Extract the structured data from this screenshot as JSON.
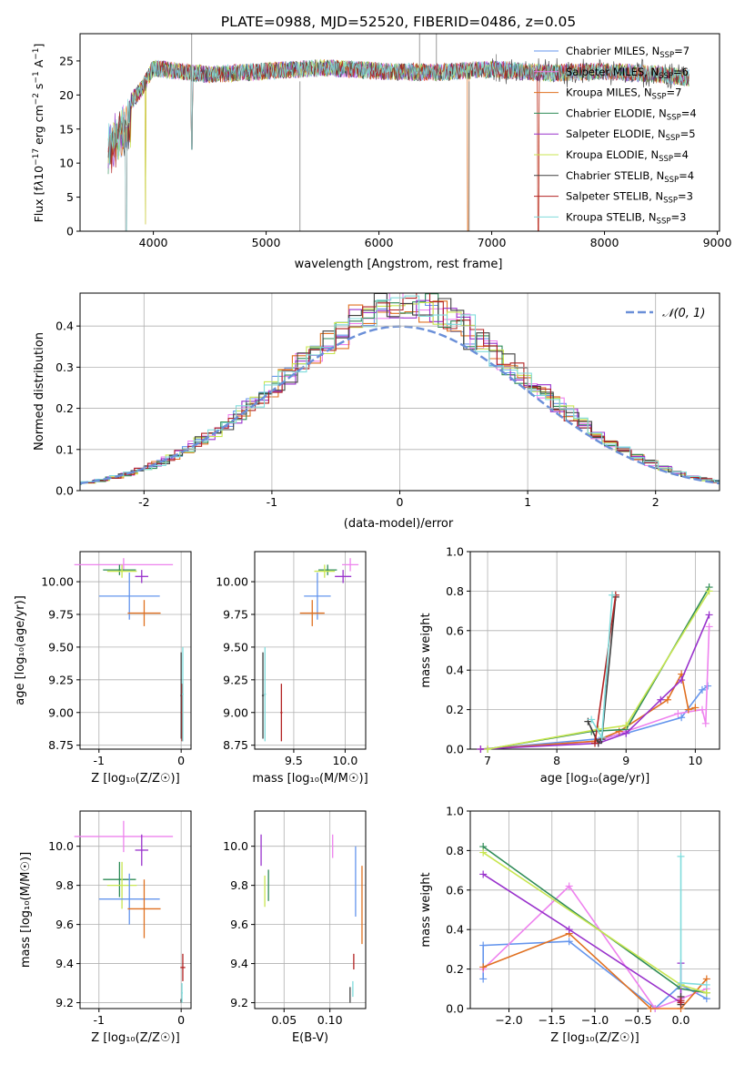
{
  "chart_data": [
    {
      "id": "spectrum",
      "type": "line",
      "title": "PLATE=0988, MJD=52520, FIBERID=0486, z=0.05",
      "xlabel": "wavelength [Angstrom, rest frame]",
      "ylabel": "Flux [f_λ 10^{-17} erg cm^{-2} s^{-1} A^{-1}]",
      "xlim": [
        3350,
        9020
      ],
      "ylim": [
        0,
        29
      ],
      "xticks": [
        4000,
        5000,
        6000,
        7000,
        8000,
        9000
      ],
      "yticks": [
        0,
        5,
        10,
        15,
        20,
        25
      ],
      "grid": false,
      "legend_position": "top-right",
      "data_x_range": [
        3600,
        8750
      ],
      "legend": [
        {
          "name": "Chabrier MILES, N",
          "sub": "SSP",
          "tail": "=7",
          "color": "#6495ed"
        },
        {
          "name": "Salpeter MILES, N",
          "sub": "SSP",
          "tail": "=6",
          "color": "#ee82ee"
        },
        {
          "name": "Kroupa MILES, N",
          "sub": "SSP",
          "tail": "=7",
          "color": "#e07020"
        },
        {
          "name": "Chabrier ELODIE, N",
          "sub": "SSP",
          "tail": "=4",
          "color": "#2e8b57"
        },
        {
          "name": "Salpeter ELODIE, N",
          "sub": "SSP",
          "tail": "=5",
          "color": "#9932cc"
        },
        {
          "name": "Kroupa ELODIE, N",
          "sub": "SSP",
          "tail": "=4",
          "color": "#c8e650"
        },
        {
          "name": "Chabrier STELIB, N",
          "sub": "SSP",
          "tail": "=4",
          "color": "#404040"
        },
        {
          "name": "Salpeter STELIB, N",
          "sub": "SSP",
          "tail": "=3",
          "color": "#b22222"
        },
        {
          "name": "Kroupa STELIB, N",
          "sub": "SSP",
          "tail": "=3",
          "color": "#7fdcdc"
        }
      ],
      "continuum": {
        "x": [
          3600,
          3700,
          3800,
          3900,
          4000,
          4200,
          4500,
          5000,
          5500,
          6000,
          6500,
          7000,
          7500,
          8000,
          8500,
          8750
        ],
        "y": [
          15,
          17,
          19,
          21,
          24,
          23.5,
          23,
          23.5,
          24,
          23.5,
          23.3,
          23.8,
          23.2,
          23.5,
          23,
          22.5
        ]
      }
    },
    {
      "id": "residuals",
      "type": "line",
      "xlabel": "(data-model)/error",
      "ylabel": "Normed distribution",
      "xlim": [
        -2.5,
        2.5
      ],
      "ylim": [
        0,
        0.48
      ],
      "xticks": [
        -2,
        -1,
        0,
        1,
        2
      ],
      "yticks": [
        0.0,
        0.1,
        0.2,
        0.3,
        0.4
      ],
      "grid": true,
      "legend_position": "top-right",
      "legend": [
        {
          "name": "𝒩(0, 1)",
          "style": "dashed",
          "color": "#6a8fd8"
        }
      ],
      "gaussian": {
        "mean": 0,
        "sigma": 1
      }
    },
    {
      "id": "age_vs_Z",
      "type": "scatter",
      "xlabel": "Z [log₁₀(Z/Z☉)]",
      "ylabel": "age  [log₁₀(age/yr)]",
      "xlim": [
        -1.23,
        0.12
      ],
      "ylim": [
        8.72,
        10.23
      ],
      "xticks": [
        -1,
        0
      ],
      "yticks": [
        8.75,
        9.0,
        9.25,
        9.5,
        9.75,
        10.0
      ],
      "grid": true,
      "points": [
        {
          "color": "#ee82ee",
          "x": -0.7,
          "y": 10.13,
          "xerr": 0.6,
          "yerr": 0.05
        },
        {
          "color": "#2e8b57",
          "x": -0.75,
          "y": 10.09,
          "xerr": 0.2,
          "yerr": 0.04
        },
        {
          "color": "#c8e650",
          "x": -0.72,
          "y": 10.08,
          "xerr": 0.18,
          "yerr": 0.05
        },
        {
          "color": "#9932cc",
          "x": -0.48,
          "y": 10.04,
          "xerr": 0.08,
          "yerr": 0.05
        },
        {
          "color": "#6495ed",
          "x": -0.63,
          "y": 9.89,
          "xerr": 0.37,
          "yerr": 0.18
        },
        {
          "color": "#e07020",
          "x": -0.45,
          "y": 9.76,
          "xerr": 0.2,
          "yerr": 0.1
        },
        {
          "color": "#404040",
          "x": 0.0,
          "y": 9.13,
          "xerr": 0.01,
          "yerr": 0.33
        },
        {
          "color": "#b22222",
          "x": 0.01,
          "y": 9.0,
          "xerr": 0.01,
          "yerr": 0.22
        },
        {
          "color": "#7fdcdc",
          "x": 0.02,
          "y": 9.14,
          "xerr": 0.01,
          "yerr": 0.36
        }
      ]
    },
    {
      "id": "age_vs_mass",
      "type": "scatter",
      "xlabel": "mass [log₁₀(M/M☉)]",
      "xlim": [
        9.12,
        10.2
      ],
      "ylim": [
        8.72,
        10.23
      ],
      "xticks": [
        9.5,
        10.0
      ],
      "yticks": [
        8.75,
        9.0,
        9.25,
        9.5,
        9.75,
        10.0
      ],
      "grid": true,
      "points": [
        {
          "color": "#ee82ee",
          "x": 10.05,
          "y": 10.13,
          "xerr": 0.08,
          "yerr": 0.05
        },
        {
          "color": "#2e8b57",
          "x": 9.83,
          "y": 10.09,
          "xerr": 0.09,
          "yerr": 0.04
        },
        {
          "color": "#c8e650",
          "x": 9.8,
          "y": 10.08,
          "xerr": 0.1,
          "yerr": 0.05
        },
        {
          "color": "#9932cc",
          "x": 9.98,
          "y": 10.04,
          "xerr": 0.08,
          "yerr": 0.05
        },
        {
          "color": "#6495ed",
          "x": 9.73,
          "y": 9.89,
          "xerr": 0.13,
          "yerr": 0.18
        },
        {
          "color": "#e07020",
          "x": 9.68,
          "y": 9.76,
          "xerr": 0.12,
          "yerr": 0.1
        },
        {
          "color": "#404040",
          "x": 9.2,
          "y": 9.13,
          "xerr": 0.01,
          "yerr": 0.33
        },
        {
          "color": "#b22222",
          "x": 9.38,
          "y": 9.0,
          "xerr": 0.01,
          "yerr": 0.22
        },
        {
          "color": "#7fdcdc",
          "x": 9.22,
          "y": 9.14,
          "xerr": 0.01,
          "yerr": 0.36
        }
      ]
    },
    {
      "id": "weight_vs_age",
      "type": "line",
      "xlabel": "age  [log₁₀(age/yr)]",
      "ylabel": "mass weight",
      "xlim": [
        6.75,
        10.35
      ],
      "ylim": [
        0,
        1
      ],
      "xticks": [
        7,
        8,
        9,
        10
      ],
      "yticks": [
        0.0,
        0.2,
        0.4,
        0.6,
        0.8,
        1.0
      ],
      "grid": true,
      "series": [
        {
          "color": "#6495ed",
          "x": [
            6.9,
            8.55,
            9.0,
            9.8,
            10.1,
            10.18
          ],
          "y": [
            0.0,
            0.05,
            0.08,
            0.16,
            0.3,
            0.32
          ]
        },
        {
          "color": "#ee82ee",
          "x": [
            6.9,
            8.6,
            9.0,
            9.75,
            10.1,
            10.15,
            10.2
          ],
          "y": [
            0.0,
            0.04,
            0.09,
            0.18,
            0.2,
            0.13,
            0.62
          ]
        },
        {
          "color": "#e07020",
          "x": [
            6.9,
            8.55,
            8.9,
            9.6,
            9.8,
            9.9,
            10.0
          ],
          "y": [
            0.0,
            0.04,
            0.09,
            0.25,
            0.38,
            0.2,
            0.21
          ]
        },
        {
          "color": "#2e8b57",
          "x": [
            7.0,
            8.5,
            9.0,
            10.2
          ],
          "y": [
            0.0,
            0.09,
            0.1,
            0.82
          ]
        },
        {
          "color": "#9932cc",
          "x": [
            6.9,
            8.6,
            9.0,
            9.5,
            9.8,
            10.2
          ],
          "y": [
            0.0,
            0.03,
            0.08,
            0.25,
            0.35,
            0.68
          ]
        },
        {
          "color": "#c8e650",
          "x": [
            7.0,
            8.6,
            9.0,
            10.2
          ],
          "y": [
            0.0,
            0.1,
            0.12,
            0.8
          ]
        },
        {
          "color": "#404040",
          "x": [
            8.45,
            8.6,
            8.65,
            8.85
          ],
          "y": [
            0.14,
            0.03,
            0.05,
            0.77
          ]
        },
        {
          "color": "#b22222",
          "x": [
            8.55,
            8.85
          ],
          "y": [
            0.03,
            0.78
          ]
        },
        {
          "color": "#7fdcdc",
          "x": [
            8.5,
            8.65,
            8.8
          ],
          "y": [
            0.15,
            0.06,
            0.78
          ]
        }
      ]
    },
    {
      "id": "mass_vs_Z",
      "type": "scatter",
      "xlabel": "Z [log₁₀(Z/Z☉)]",
      "ylabel": "mass [log₁₀(M/M☉)]",
      "xlim": [
        -1.23,
        0.12
      ],
      "ylim": [
        9.17,
        10.18
      ],
      "xticks": [
        -1,
        0
      ],
      "yticks": [
        9.2,
        9.4,
        9.6,
        9.8,
        10.0
      ],
      "grid": true,
      "points": [
        {
          "color": "#ee82ee",
          "x": -0.7,
          "y": 10.05,
          "xerr": 0.6,
          "yerr": 0.08
        },
        {
          "color": "#2e8b57",
          "x": -0.75,
          "y": 9.83,
          "xerr": 0.2,
          "yerr": 0.09
        },
        {
          "color": "#c8e650",
          "x": -0.72,
          "y": 9.8,
          "xerr": 0.18,
          "yerr": 0.12
        },
        {
          "color": "#9932cc",
          "x": -0.48,
          "y": 9.98,
          "xerr": 0.08,
          "yerr": 0.08
        },
        {
          "color": "#6495ed",
          "x": -0.63,
          "y": 9.73,
          "xerr": 0.37,
          "yerr": 0.13
        },
        {
          "color": "#e07020",
          "x": -0.45,
          "y": 9.68,
          "xerr": 0.2,
          "yerr": 0.15
        },
        {
          "color": "#404040",
          "x": 0.0,
          "y": 9.21,
          "xerr": 0.01,
          "yerr": 0.01
        },
        {
          "color": "#b22222",
          "x": 0.02,
          "y": 9.38,
          "xerr": 0.03,
          "yerr": 0.07
        },
        {
          "color": "#7fdcdc",
          "x": 0.01,
          "y": 9.25,
          "xerr": 0.01,
          "yerr": 0.05
        }
      ]
    },
    {
      "id": "mass_vs_EBV",
      "type": "scatter",
      "xlabel": "E(B-V)",
      "xlim": [
        0.018,
        0.139
      ],
      "ylim": [
        9.17,
        10.18
      ],
      "xticks": [
        0.05,
        0.1
      ],
      "yticks": [
        9.2,
        9.4,
        9.6,
        9.8,
        10.0
      ],
      "grid": true,
      "points": [
        {
          "color": "#ee82ee",
          "x": 0.103,
          "y": 10.0,
          "xerr": 0.0,
          "yerr": 0.06
        },
        {
          "color": "#9932cc",
          "x": 0.025,
          "y": 9.98,
          "xerr": 0.0,
          "yerr": 0.08
        },
        {
          "color": "#6495ed",
          "x": 0.128,
          "y": 9.82,
          "xerr": 0.0,
          "yerr": 0.18
        },
        {
          "color": "#e07020",
          "x": 0.135,
          "y": 9.7,
          "xerr": 0.0,
          "yerr": 0.2
        },
        {
          "color": "#2e8b57",
          "x": 0.033,
          "y": 9.8,
          "xerr": 0.0,
          "yerr": 0.08
        },
        {
          "color": "#c8e650",
          "x": 0.029,
          "y": 9.77,
          "xerr": 0.0,
          "yerr": 0.08
        },
        {
          "color": "#b22222",
          "x": 0.126,
          "y": 9.41,
          "xerr": 0.0,
          "yerr": 0.04
        },
        {
          "color": "#404040",
          "x": 0.122,
          "y": 9.24,
          "xerr": 0.0,
          "yerr": 0.04
        },
        {
          "color": "#7fdcdc",
          "x": 0.125,
          "y": 9.27,
          "xerr": 0.0,
          "yerr": 0.04
        }
      ]
    },
    {
      "id": "weight_vs_Z",
      "type": "line",
      "xlabel": "Z [log₁₀(Z/Z☉)]",
      "ylabel": "mass weight",
      "xlim": [
        -2.45,
        0.45
      ],
      "ylim": [
        0,
        1
      ],
      "xticks": [
        -2.0,
        -1.5,
        -1.0,
        -0.5,
        0.0
      ],
      "yticks": [
        0.0,
        0.2,
        0.4,
        0.6,
        0.8,
        1.0
      ],
      "grid": true,
      "series": [
        {
          "color": "#6495ed",
          "x": [
            -2.3,
            -2.3,
            -1.3,
            -0.3,
            0.0,
            0.3
          ],
          "y": [
            0.15,
            0.32,
            0.34,
            0.0,
            0.12,
            0.05
          ]
        },
        {
          "color": "#ee82ee",
          "x": [
            -2.3,
            -1.3,
            -0.3,
            0.0,
            0.3
          ],
          "y": [
            0.2,
            0.62,
            0.0,
            0.05,
            0.1
          ]
        },
        {
          "color": "#e07020",
          "x": [
            -2.3,
            -1.3,
            -0.35,
            0.0,
            0.3
          ],
          "y": [
            0.21,
            0.38,
            0.0,
            0.0,
            0.15
          ]
        },
        {
          "color": "#2e8b57",
          "x": [
            -2.3,
            0.0,
            0.3
          ],
          "y": [
            0.82,
            0.1,
            0.08
          ]
        },
        {
          "color": "#9932cc",
          "x": [
            -2.3,
            -1.3,
            0.0,
            0.0
          ],
          "y": [
            0.68,
            0.4,
            0.03,
            0.23
          ]
        },
        {
          "color": "#c8e650",
          "x": [
            -2.3,
            0.0,
            0.3
          ],
          "y": [
            0.79,
            0.12,
            0.08
          ]
        },
        {
          "color": "#404040",
          "x": [
            0.0,
            0.0
          ],
          "y": [
            0.02,
            0.06
          ]
        },
        {
          "color": "#b22222",
          "x": [
            0.0,
            0.0
          ],
          "y": [
            0.03,
            0.04
          ]
        },
        {
          "color": "#7fdcdc",
          "x": [
            0.0,
            0.0,
            0.3
          ],
          "y": [
            0.77,
            0.13,
            0.12
          ]
        }
      ]
    }
  ]
}
